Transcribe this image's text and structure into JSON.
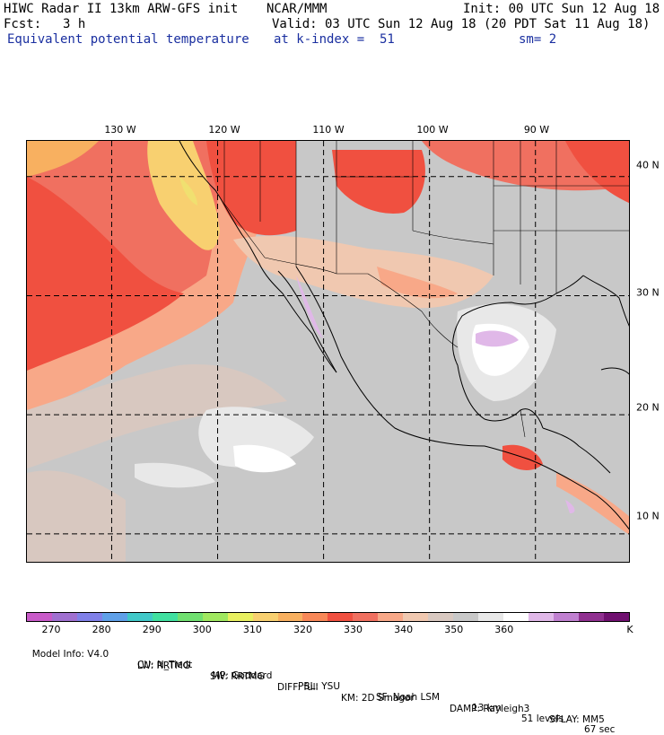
{
  "header": {
    "title": "HIWC Radar II 13km ARW-GFS init",
    "source": "NCAR/MMM",
    "init": "Init: 00 UTC Sun 12 Aug 18",
    "fcst_label": "Fcst:",
    "fcst_value": "3 h",
    "valid": "Valid: 03 UTC Sun 12 Aug 18 (20 PDT Sat 11 Aug 18)",
    "field": "Equivalent potential temperature",
    "level": "at k-index =  51",
    "smoothing": "sm= 2"
  },
  "map": {
    "lon_labels": [
      "130 W",
      "120 W",
      "110 W",
      "100 W",
      "90 W"
    ],
    "lat_labels": [
      "40 N",
      "30 N",
      "20 N",
      "10 N"
    ],
    "lon_range": [
      -138,
      -81
    ],
    "lat_range": [
      7.5,
      43
    ],
    "lon_grid": [
      -130,
      -120,
      -110,
      -100,
      -90
    ],
    "lat_grid": [
      40,
      30,
      20,
      10
    ]
  },
  "colorbar": {
    "labels": [
      "270",
      "280",
      "290",
      "300",
      "310",
      "320",
      "330",
      "340",
      "350",
      "360",
      "K"
    ],
    "colors": [
      "#c85ac8",
      "#a070d0",
      "#8080e8",
      "#5fa0e8",
      "#40c8c8",
      "#40e0a0",
      "#70e070",
      "#a0e860",
      "#e8f060",
      "#f8d070",
      "#f8b060",
      "#f88858",
      "#f05040",
      "#f07060",
      "#f8a888",
      "#f0c8b0",
      "#d8c8c0",
      "#c8c8c8",
      "#e8e8e8",
      "#ffffff",
      "#e0b8e8",
      "#c080d0",
      "#903090",
      "#701070"
    ]
  },
  "footer": {
    "line1": [
      "Model Info: V4.0",
      "CU: N_Tiedt",
      "MP: Goddard",
      "PBL: YSU",
      "SF: Noah LSM",
      "13 km",
      "51 levels",
      "67 sec"
    ],
    "line2": [
      "LW: RRTMG",
      "SW: RRTMG",
      "DIFF: full",
      "KM: 2D Smagor",
      "DAMP: Rayleigh3",
      "SFLAY: MM5"
    ]
  }
}
